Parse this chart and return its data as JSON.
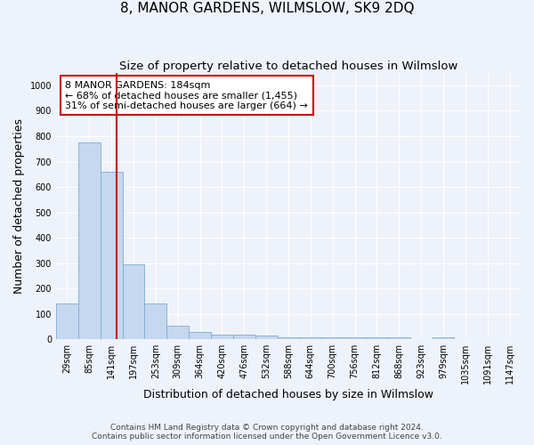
{
  "title": "8, MANOR GARDENS, WILMSLOW, SK9 2DQ",
  "subtitle": "Size of property relative to detached houses in Wilmslow",
  "xlabel": "Distribution of detached houses by size in Wilmslow",
  "ylabel": "Number of detached properties",
  "footer_line1": "Contains HM Land Registry data © Crown copyright and database right 2024.",
  "footer_line2": "Contains public sector information licensed under the Open Government Licence v3.0.",
  "bin_labels": [
    "29sqm",
    "85sqm",
    "141sqm",
    "197sqm",
    "253sqm",
    "309sqm",
    "364sqm",
    "420sqm",
    "476sqm",
    "532sqm",
    "588sqm",
    "644sqm",
    "700sqm",
    "756sqm",
    "812sqm",
    "868sqm",
    "923sqm",
    "979sqm",
    "1035sqm",
    "1091sqm",
    "1147sqm"
  ],
  "bar_values": [
    140,
    775,
    660,
    295,
    140,
    55,
    28,
    20,
    20,
    15,
    8,
    8,
    8,
    8,
    8,
    8,
    0,
    8,
    0,
    0,
    0
  ],
  "bar_color": "#c5d8f0",
  "bar_edge_color": "#7aadd4",
  "property_line_x": 2.72,
  "property_line_label": "8 MANOR GARDENS: 184sqm",
  "annotation_line2": "← 68% of detached houses are smaller (1,455)",
  "annotation_line3": "31% of semi-detached houses are larger (664) →",
  "annotation_box_color": "#cc0000",
  "ylim": [
    0,
    1050
  ],
  "yticks": [
    0,
    100,
    200,
    300,
    400,
    500,
    600,
    700,
    800,
    900,
    1000
  ],
  "background_color": "#eef2fa",
  "grid_color": "#ffffff",
  "title_fontsize": 11,
  "subtitle_fontsize": 9.5,
  "axis_label_fontsize": 9,
  "tick_fontsize": 7,
  "annotation_fontsize": 8
}
